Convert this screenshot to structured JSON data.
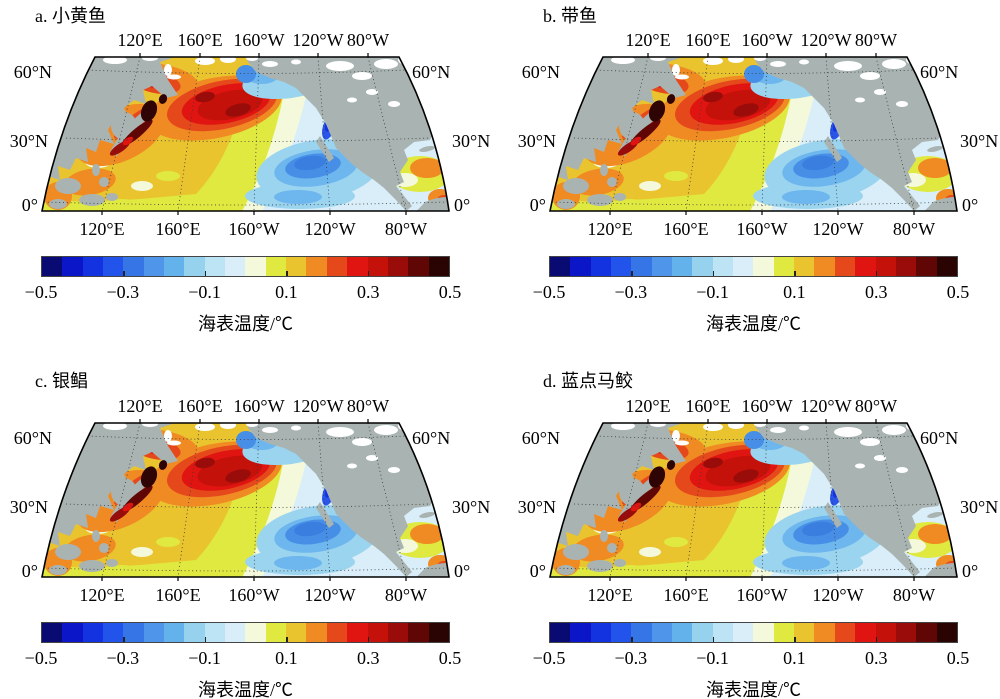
{
  "figure": {
    "panels": [
      {
        "id": "a",
        "label": "a. 小黄鱼"
      },
      {
        "id": "b",
        "label": "b. 带鱼"
      },
      {
        "id": "c",
        "label": "c. 银鲳"
      },
      {
        "id": "d",
        "label": "d. 蓝点马鲛"
      }
    ],
    "axis": {
      "lon_labels": [
        "120°E",
        "160°E",
        "160°W",
        "120°W",
        "80°W"
      ],
      "lat_labels": [
        "60°N",
        "30°N",
        "0°"
      ]
    },
    "colorbar": {
      "tick_labels": [
        "−0.5",
        "−0.3",
        "−0.1",
        "0.1",
        "0.3",
        "0.5"
      ],
      "label": "海表温度/℃",
      "colors": [
        "#0a0a73",
        "#0a16c8",
        "#1433e0",
        "#2253ea",
        "#3575e6",
        "#4f96ea",
        "#64b2ec",
        "#96d2ee",
        "#bce4f4",
        "#d9eef8",
        "#f3f9da",
        "#dfe93f",
        "#e9c42e",
        "#f08a22",
        "#e5481b",
        "#e01511",
        "#c41109",
        "#9a0c0a",
        "#600705",
        "#2a0403"
      ]
    },
    "map_colors": {
      "land": "#a9b4b2",
      "no_data": "#ffffff",
      "ocean_base": "#bfe5f4"
    }
  },
  "chart_data": {
    "type": "heatmap",
    "layout": "2x2 grid of identical North Pacific contour maps, one per fish species",
    "panels": [
      "a. 小黄鱼",
      "b. 带鱼",
      "c. 银鲳",
      "d. 蓝点马鲛"
    ],
    "x_tick_labels": [
      "120°E",
      "160°E",
      "160°W",
      "120°W",
      "80°W"
    ],
    "y_tick_labels": [
      "60°N",
      "30°N",
      "0°"
    ],
    "colorbar": {
      "label": "海表温度/℃",
      "range": [
        -0.5,
        0.5
      ],
      "ticks": [
        -0.5,
        -0.3,
        -0.1,
        0.1,
        0.3,
        0.5
      ],
      "n_levels": 20,
      "palette": [
        "#0a0a73",
        "#0a16c8",
        "#1433e0",
        "#2253ea",
        "#3575e6",
        "#4f96ea",
        "#64b2ec",
        "#96d2ee",
        "#bce4f4",
        "#d9eef8",
        "#f3f9da",
        "#dfe93f",
        "#e9c42e",
        "#f08a22",
        "#e5481b",
        "#e01511",
        "#c41109",
        "#9a0c0a",
        "#600705",
        "#2a0403"
      ]
    }
  }
}
